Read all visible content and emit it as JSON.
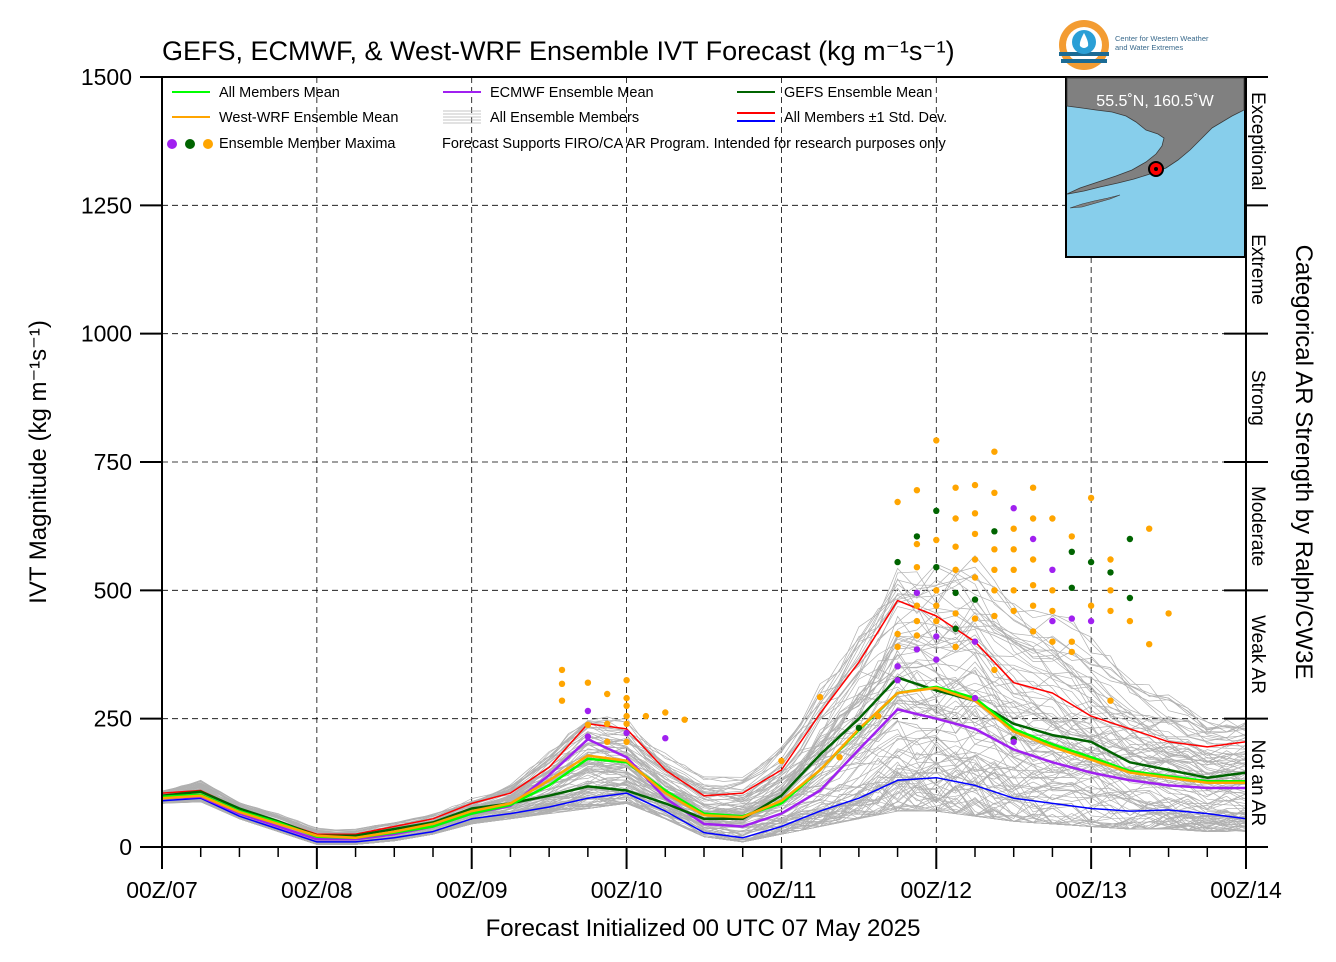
{
  "title": "GEFS, ECMWF, & West-WRF Ensemble IVT Forecast (kg m⁻¹s⁻¹)",
  "logo": {
    "line1": "Center for Western Weather",
    "line2": "and Water Extremes",
    "icon": "cw3e-water-drop-logo"
  },
  "location": "55.5˚N, 160.5˚W",
  "xlabel": "Forecast Initialized 00 UTC 07 May 2025",
  "ylabel": "IVT Magnitude (kg m⁻¹s⁻¹)",
  "right_label": "Categorical AR Strength by Ralph/CW3E",
  "legend": {
    "all_mean": "All Members Mean",
    "ecmwf_mean": "ECMWF Ensemble Mean",
    "gefs_mean": "GEFS Ensemble Mean",
    "wwrf_mean": "West-WRF Ensemble Mean",
    "all_members": "All Ensemble Members",
    "std": "All Members ±1 Std. Dev.",
    "maxima": "Ensemble Member Maxima",
    "note": "Forecast Supports FIRO/CA AR Program. Intended for research purposes only"
  },
  "categories": [
    {
      "label": "Not an AR",
      "range": [
        0,
        250
      ]
    },
    {
      "label": "Weak AR",
      "range": [
        250,
        500
      ]
    },
    {
      "label": "Moderate",
      "range": [
        500,
        750
      ]
    },
    {
      "label": "Strong",
      "range": [
        750,
        1000
      ]
    },
    {
      "label": "Extreme",
      "range": [
        1000,
        1250
      ]
    },
    {
      "label": "Exceptional",
      "range": [
        1250,
        1500
      ]
    }
  ],
  "chart_data": {
    "type": "line",
    "title": "GEFS, ECMWF, & West-WRF Ensemble IVT Forecast (kg m⁻¹s⁻¹)",
    "xlabel": "Forecast Initialized 00 UTC 07 May 2025",
    "ylabel": "IVT Magnitude (kg m⁻¹s⁻¹)",
    "x_unit": "forecast hour from 00Z/07",
    "xlim": [
      0,
      168
    ],
    "ylim": [
      0,
      1500
    ],
    "xticks": [
      0,
      24,
      48,
      72,
      96,
      120,
      144,
      168
    ],
    "xtick_labels": [
      "00Z/07",
      "00Z/08",
      "00Z/09",
      "00Z/10",
      "00Z/11",
      "00Z/12",
      "00Z/13",
      "00Z/14"
    ],
    "yticks": [
      0,
      250,
      500,
      750,
      1000,
      1250,
      1500
    ],
    "grid": true,
    "legend_position": "top-left",
    "colors": {
      "all_mean": "#00ff00",
      "wwrf_mean": "#ffa500",
      "ecmwf_mean": "#a020f0",
      "gefs_mean": "#006400",
      "std_upper": "#ff0000",
      "std_lower": "#0000ff",
      "members": "#b0b0b0",
      "max_ecmwf": "#a020f0",
      "max_gefs": "#006400",
      "max_wwrf": "#ffa500"
    },
    "x": [
      0,
      6,
      12,
      18,
      24,
      30,
      36,
      42,
      48,
      54,
      60,
      66,
      72,
      78,
      84,
      90,
      96,
      102,
      108,
      114,
      120,
      126,
      132,
      138,
      144,
      150,
      156,
      162,
      168
    ],
    "series": [
      {
        "name": "All Members Mean",
        "key": "all_mean",
        "values": [
          98,
          102,
          70,
          48,
          20,
          18,
          28,
          40,
          65,
          82,
          120,
          172,
          165,
          110,
          65,
          60,
          85,
          150,
          228,
          300,
          312,
          290,
          230,
          200,
          175,
          148,
          138,
          128,
          128
        ]
      },
      {
        "name": "West-WRF Ensemble Mean",
        "key": "wwrf_mean",
        "values": [
          95,
          100,
          68,
          45,
          22,
          18,
          30,
          45,
          70,
          85,
          130,
          178,
          168,
          105,
          62,
          58,
          90,
          150,
          230,
          300,
          310,
          285,
          225,
          195,
          170,
          145,
          135,
          125,
          125
        ]
      },
      {
        "name": "ECMWF Ensemble Mean",
        "key": "ecmwf_mean",
        "values": [
          95,
          98,
          65,
          40,
          15,
          15,
          25,
          40,
          65,
          80,
          140,
          210,
          175,
          95,
          45,
          40,
          65,
          110,
          190,
          268,
          250,
          230,
          190,
          165,
          145,
          130,
          120,
          115,
          115
        ]
      },
      {
        "name": "GEFS Ensemble Mean",
        "key": "gefs_mean",
        "values": [
          100,
          108,
          75,
          50,
          22,
          22,
          35,
          48,
          75,
          85,
          100,
          118,
          110,
          85,
          55,
          55,
          100,
          180,
          250,
          330,
          305,
          285,
          240,
          218,
          205,
          165,
          150,
          135,
          145
        ]
      },
      {
        "name": "All Members ±1 Std. Dev.",
        "key": "std_upper",
        "values": [
          105,
          110,
          75,
          50,
          25,
          25,
          40,
          55,
          85,
          105,
          155,
          240,
          230,
          150,
          100,
          105,
          150,
          260,
          360,
          480,
          450,
          400,
          320,
          300,
          255,
          230,
          205,
          195,
          205
        ]
      },
      {
        "name": "",
        "key": "std_lower",
        "values": [
          90,
          95,
          60,
          35,
          10,
          10,
          18,
          30,
          55,
          65,
          78,
          95,
          105,
          70,
          28,
          18,
          40,
          70,
          95,
          130,
          135,
          120,
          95,
          85,
          75,
          70,
          72,
          65,
          55
        ]
      }
    ],
    "member_band": {
      "min": [
        85,
        88,
        55,
        30,
        5,
        5,
        12,
        25,
        45,
        55,
        65,
        75,
        85,
        55,
        20,
        10,
        25,
        40,
        55,
        70,
        70,
        60,
        50,
        45,
        40,
        35,
        35,
        30,
        30
      ],
      "max": [
        120,
        155,
        100,
        75,
        45,
        45,
        65,
        85,
        120,
        160,
        250,
        320,
        300,
        220,
        180,
        190,
        290,
        470,
        620,
        790,
        720,
        770,
        660,
        640,
        590,
        500,
        450,
        380,
        370
      ]
    },
    "maxima": [
      {
        "x": 62,
        "y": 345,
        "model": "wwrf"
      },
      {
        "x": 62,
        "y": 318,
        "model": "wwrf"
      },
      {
        "x": 62,
        "y": 285,
        "model": "wwrf"
      },
      {
        "x": 66,
        "y": 320,
        "model": "wwrf"
      },
      {
        "x": 66,
        "y": 265,
        "model": "ecmwf"
      },
      {
        "x": 66,
        "y": 238,
        "model": "wwrf"
      },
      {
        "x": 66,
        "y": 215,
        "model": "ecmwf"
      },
      {
        "x": 69,
        "y": 298,
        "model": "wwrf"
      },
      {
        "x": 69,
        "y": 240,
        "model": "wwrf"
      },
      {
        "x": 69,
        "y": 205,
        "model": "wwrf"
      },
      {
        "x": 72,
        "y": 325,
        "model": "wwrf"
      },
      {
        "x": 72,
        "y": 290,
        "model": "wwrf"
      },
      {
        "x": 72,
        "y": 275,
        "model": "wwrf"
      },
      {
        "x": 72,
        "y": 255,
        "model": "wwrf"
      },
      {
        "x": 72,
        "y": 240,
        "model": "wwrf"
      },
      {
        "x": 72,
        "y": 222,
        "model": "ecmwf"
      },
      {
        "x": 72,
        "y": 205,
        "model": "wwrf"
      },
      {
        "x": 75,
        "y": 255,
        "model": "wwrf"
      },
      {
        "x": 78,
        "y": 262,
        "model": "wwrf"
      },
      {
        "x": 78,
        "y": 212,
        "model": "ecmwf"
      },
      {
        "x": 81,
        "y": 248,
        "model": "wwrf"
      },
      {
        "x": 96,
        "y": 168,
        "model": "wwrf"
      },
      {
        "x": 102,
        "y": 292,
        "model": "wwrf"
      },
      {
        "x": 105,
        "y": 175,
        "model": "wwrf"
      },
      {
        "x": 108,
        "y": 232,
        "model": "gefs"
      },
      {
        "x": 111,
        "y": 255,
        "model": "wwrf"
      },
      {
        "x": 114,
        "y": 672,
        "model": "wwrf"
      },
      {
        "x": 114,
        "y": 555,
        "model": "gefs"
      },
      {
        "x": 114,
        "y": 415,
        "model": "wwrf"
      },
      {
        "x": 114,
        "y": 390,
        "model": "wwrf"
      },
      {
        "x": 114,
        "y": 352,
        "model": "ecmwf"
      },
      {
        "x": 114,
        "y": 325,
        "model": "ecmwf"
      },
      {
        "x": 117,
        "y": 695,
        "model": "wwrf"
      },
      {
        "x": 117,
        "y": 605,
        "model": "gefs"
      },
      {
        "x": 117,
        "y": 590,
        "model": "wwrf"
      },
      {
        "x": 117,
        "y": 545,
        "model": "wwrf"
      },
      {
        "x": 117,
        "y": 495,
        "model": "ecmwf"
      },
      {
        "x": 117,
        "y": 470,
        "model": "wwrf"
      },
      {
        "x": 117,
        "y": 440,
        "model": "wwrf"
      },
      {
        "x": 117,
        "y": 412,
        "model": "wwrf"
      },
      {
        "x": 117,
        "y": 385,
        "model": "ecmwf"
      },
      {
        "x": 120,
        "y": 792,
        "model": "wwrf"
      },
      {
        "x": 120,
        "y": 655,
        "model": "gefs"
      },
      {
        "x": 120,
        "y": 598,
        "model": "wwrf"
      },
      {
        "x": 120,
        "y": 545,
        "model": "gefs"
      },
      {
        "x": 120,
        "y": 500,
        "model": "wwrf"
      },
      {
        "x": 120,
        "y": 470,
        "model": "wwrf"
      },
      {
        "x": 120,
        "y": 440,
        "model": "wwrf"
      },
      {
        "x": 120,
        "y": 410,
        "model": "ecmwf"
      },
      {
        "x": 120,
        "y": 365,
        "model": "ecmwf"
      },
      {
        "x": 123,
        "y": 700,
        "model": "wwrf"
      },
      {
        "x": 123,
        "y": 640,
        "model": "wwrf"
      },
      {
        "x": 123,
        "y": 585,
        "model": "wwrf"
      },
      {
        "x": 123,
        "y": 540,
        "model": "wwrf"
      },
      {
        "x": 123,
        "y": 495,
        "model": "gefs"
      },
      {
        "x": 123,
        "y": 455,
        "model": "wwrf"
      },
      {
        "x": 123,
        "y": 425,
        "model": "gefs"
      },
      {
        "x": 123,
        "y": 390,
        "model": "wwrf"
      },
      {
        "x": 126,
        "y": 705,
        "model": "wwrf"
      },
      {
        "x": 126,
        "y": 650,
        "model": "wwrf"
      },
      {
        "x": 126,
        "y": 610,
        "model": "wwrf"
      },
      {
        "x": 126,
        "y": 560,
        "model": "wwrf"
      },
      {
        "x": 126,
        "y": 525,
        "model": "wwrf"
      },
      {
        "x": 126,
        "y": 482,
        "model": "gefs"
      },
      {
        "x": 126,
        "y": 445,
        "model": "wwrf"
      },
      {
        "x": 126,
        "y": 400,
        "model": "ecmwf"
      },
      {
        "x": 126,
        "y": 290,
        "model": "ecmwf"
      },
      {
        "x": 129,
        "y": 770,
        "model": "wwrf"
      },
      {
        "x": 129,
        "y": 690,
        "model": "wwrf"
      },
      {
        "x": 129,
        "y": 615,
        "model": "gefs"
      },
      {
        "x": 129,
        "y": 580,
        "model": "wwrf"
      },
      {
        "x": 129,
        "y": 540,
        "model": "wwrf"
      },
      {
        "x": 129,
        "y": 500,
        "model": "wwrf"
      },
      {
        "x": 129,
        "y": 450,
        "model": "wwrf"
      },
      {
        "x": 129,
        "y": 345,
        "model": "wwrf"
      },
      {
        "x": 132,
        "y": 660,
        "model": "ecmwf"
      },
      {
        "x": 132,
        "y": 620,
        "model": "wwrf"
      },
      {
        "x": 132,
        "y": 580,
        "model": "wwrf"
      },
      {
        "x": 132,
        "y": 540,
        "model": "wwrf"
      },
      {
        "x": 132,
        "y": 500,
        "model": "wwrf"
      },
      {
        "x": 132,
        "y": 460,
        "model": "wwrf"
      },
      {
        "x": 132,
        "y": 210,
        "model": "gefs"
      },
      {
        "x": 132,
        "y": 205,
        "model": "ecmwf"
      },
      {
        "x": 135,
        "y": 700,
        "model": "wwrf"
      },
      {
        "x": 135,
        "y": 640,
        "model": "wwrf"
      },
      {
        "x": 135,
        "y": 600,
        "model": "ecmwf"
      },
      {
        "x": 135,
        "y": 560,
        "model": "wwrf"
      },
      {
        "x": 135,
        "y": 510,
        "model": "wwrf"
      },
      {
        "x": 135,
        "y": 470,
        "model": "wwrf"
      },
      {
        "x": 135,
        "y": 420,
        "model": "wwrf"
      },
      {
        "x": 138,
        "y": 640,
        "model": "wwrf"
      },
      {
        "x": 138,
        "y": 540,
        "model": "ecmwf"
      },
      {
        "x": 138,
        "y": 500,
        "model": "wwrf"
      },
      {
        "x": 138,
        "y": 460,
        "model": "wwrf"
      },
      {
        "x": 138,
        "y": 440,
        "model": "ecmwf"
      },
      {
        "x": 138,
        "y": 400,
        "model": "wwrf"
      },
      {
        "x": 141,
        "y": 605,
        "model": "wwrf"
      },
      {
        "x": 141,
        "y": 575,
        "model": "gefs"
      },
      {
        "x": 141,
        "y": 505,
        "model": "gefs"
      },
      {
        "x": 141,
        "y": 445,
        "model": "ecmwf"
      },
      {
        "x": 141,
        "y": 400,
        "model": "wwrf"
      },
      {
        "x": 141,
        "y": 380,
        "model": "wwrf"
      },
      {
        "x": 144,
        "y": 680,
        "model": "wwrf"
      },
      {
        "x": 144,
        "y": 555,
        "model": "gefs"
      },
      {
        "x": 144,
        "y": 470,
        "model": "wwrf"
      },
      {
        "x": 144,
        "y": 440,
        "model": "ecmwf"
      },
      {
        "x": 147,
        "y": 560,
        "model": "wwrf"
      },
      {
        "x": 147,
        "y": 535,
        "model": "gefs"
      },
      {
        "x": 147,
        "y": 500,
        "model": "wwrf"
      },
      {
        "x": 147,
        "y": 460,
        "model": "wwrf"
      },
      {
        "x": 147,
        "y": 285,
        "model": "wwrf"
      },
      {
        "x": 150,
        "y": 600,
        "model": "gefs"
      },
      {
        "x": 150,
        "y": 485,
        "model": "gefs"
      },
      {
        "x": 150,
        "y": 440,
        "model": "wwrf"
      },
      {
        "x": 153,
        "y": 620,
        "model": "wwrf"
      },
      {
        "x": 153,
        "y": 395,
        "model": "wwrf"
      },
      {
        "x": 156,
        "y": 455,
        "model": "wwrf"
      }
    ]
  }
}
